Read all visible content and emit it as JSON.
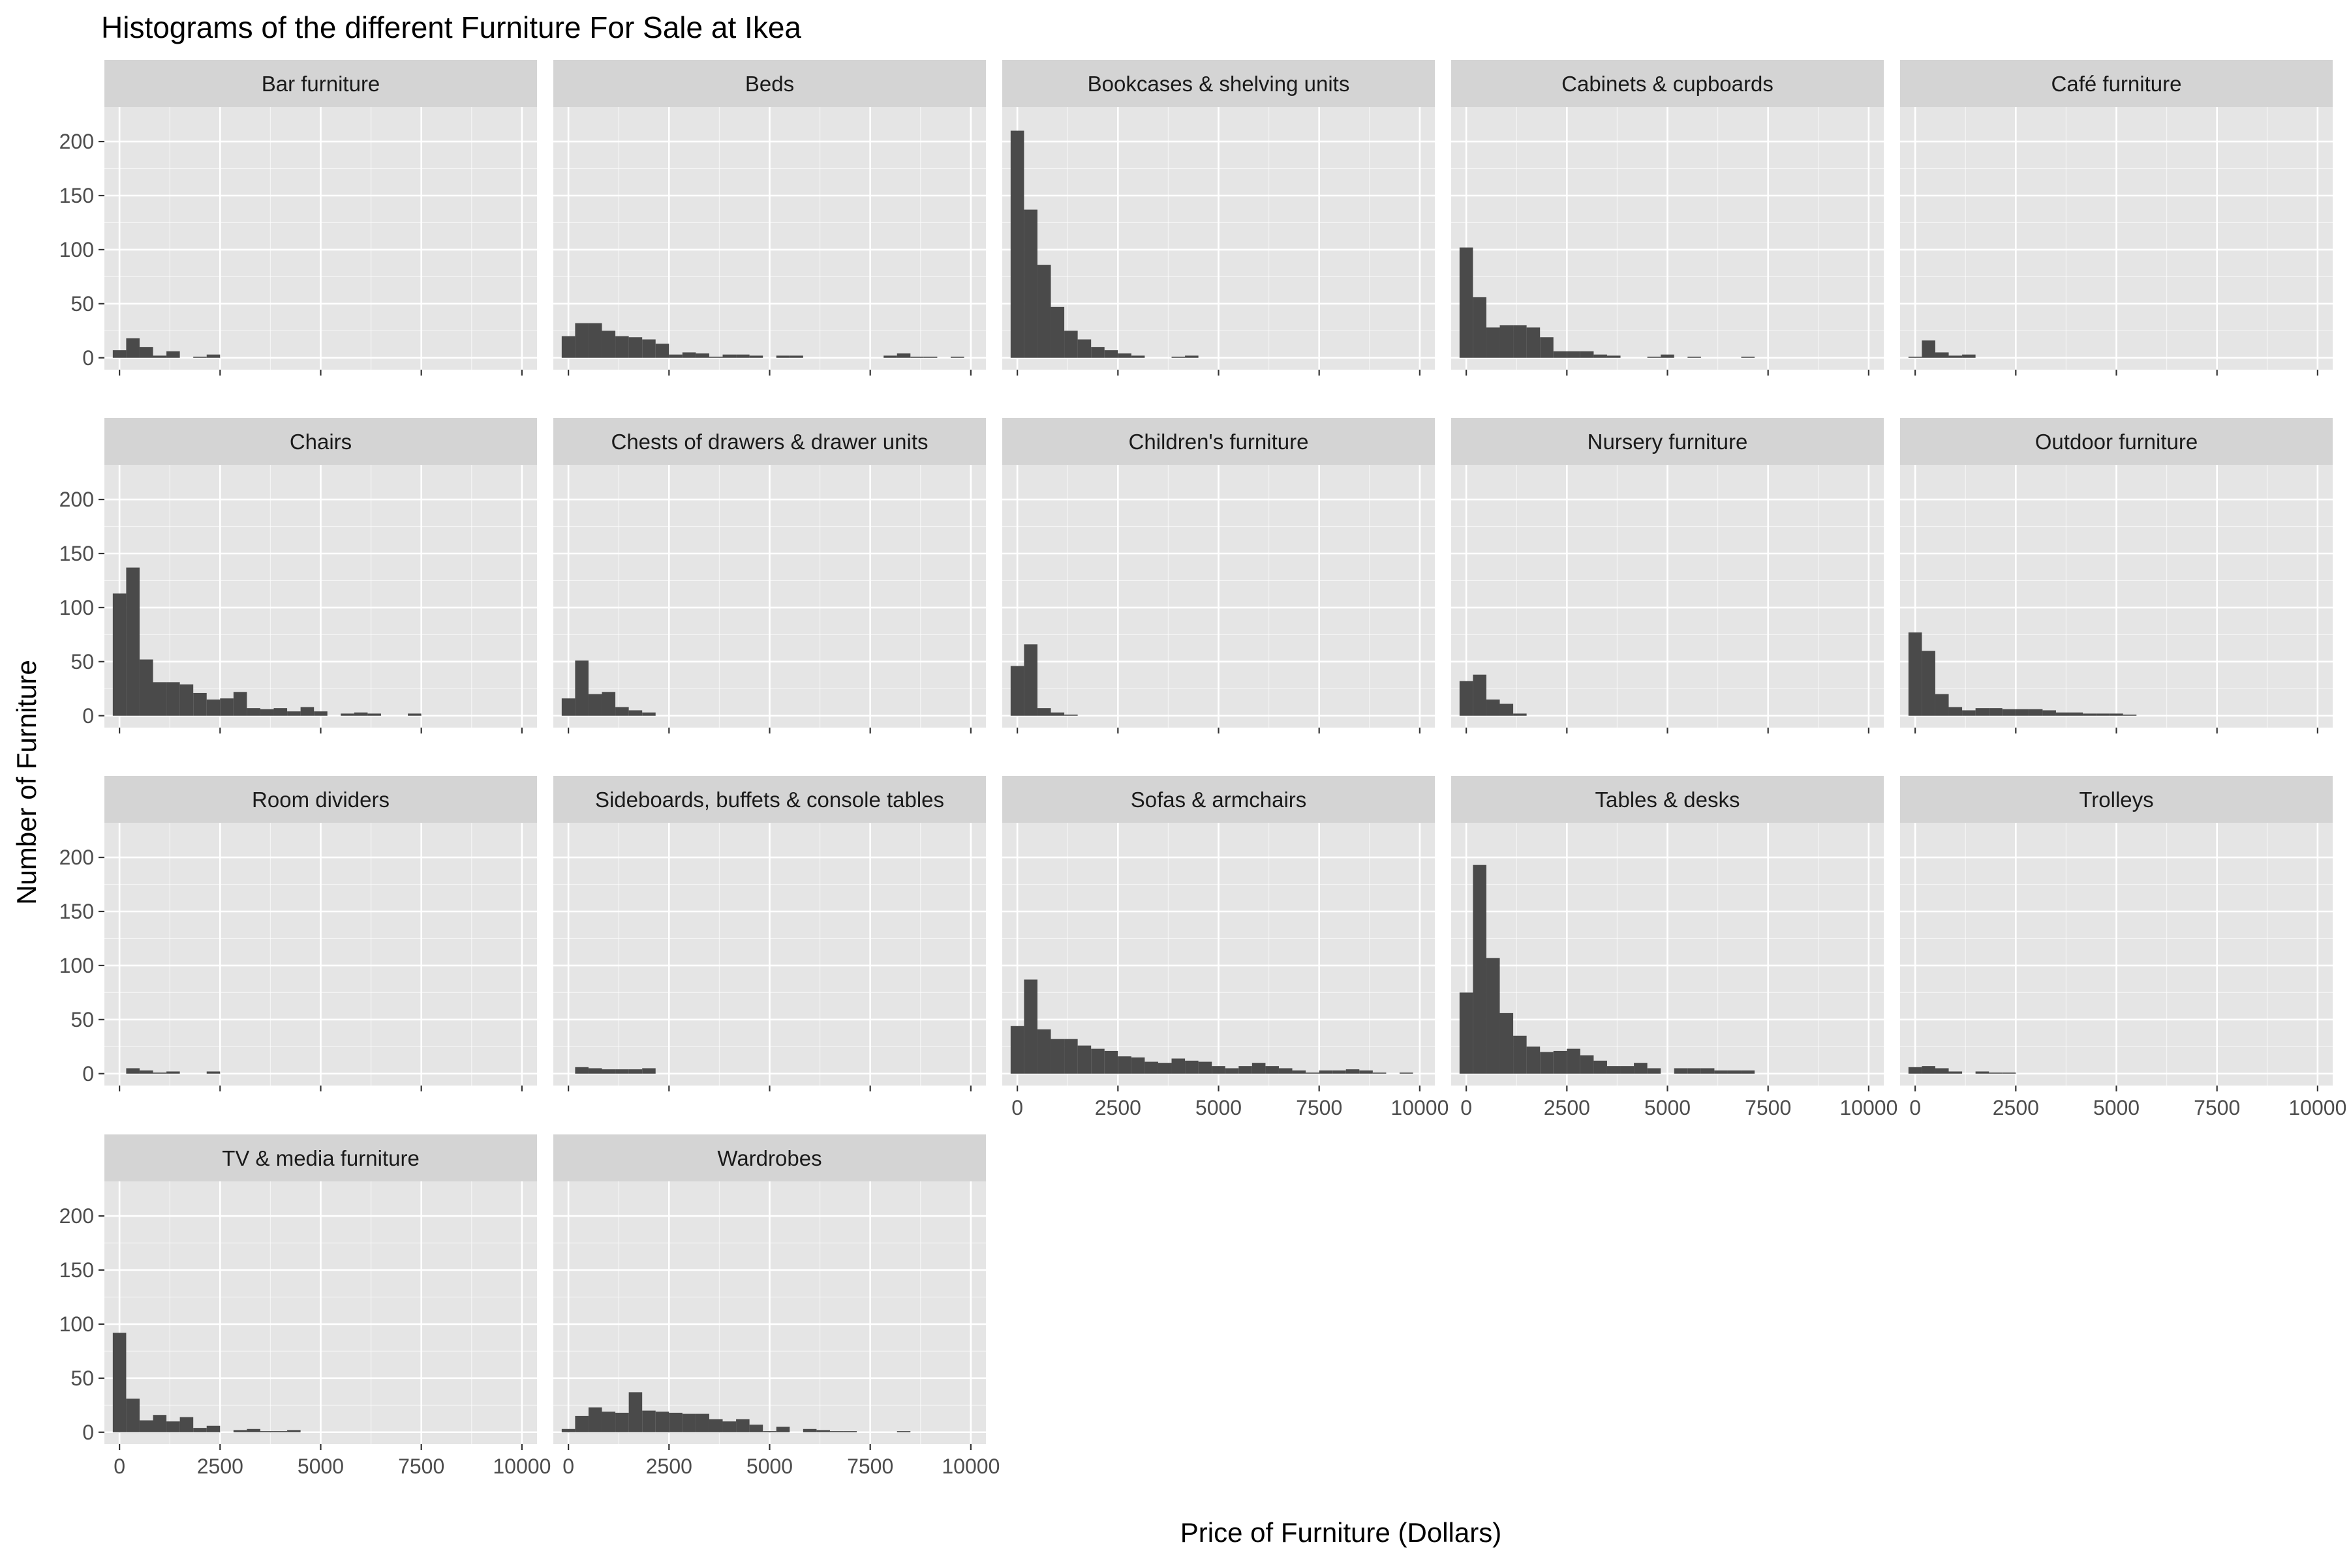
{
  "chart_data": {
    "type": "bar",
    "title": "Histograms of the different Furniture For Sale at Ikea",
    "xlabel": "Price of Furniture (Dollars)",
    "ylabel": "Number of Furniture",
    "xlim": [
      -375,
      10375
    ],
    "ylim": [
      -11,
      232
    ],
    "x_ticks": [
      0,
      2500,
      5000,
      7500,
      10000
    ],
    "y_ticks": [
      0,
      50,
      100,
      150,
      200
    ],
    "bin_width": 333.3,
    "bin_start": -166.7,
    "grid": true,
    "facet_layout": "5 columns x 4 rows",
    "colors": {
      "bar_fill": "#4a4a4a",
      "panel_background": "#e5e5e5",
      "grid_major": "#ffffff",
      "strip_background": "#d4d4d4",
      "axis_text": "#4d4d4d",
      "title_text": "#000000"
    },
    "panels": [
      {
        "name": "Bar furniture",
        "counts": [
          7,
          18,
          10,
          2,
          6,
          0,
          1,
          3
        ]
      },
      {
        "name": "Beds",
        "counts": [
          20,
          32,
          32,
          25,
          20,
          19,
          17,
          13,
          3,
          5,
          4,
          1,
          3,
          3,
          2,
          0,
          2,
          2,
          0,
          0,
          0,
          0,
          0,
          0,
          2,
          4,
          1,
          1,
          0,
          1
        ]
      },
      {
        "name": "Bookcases & shelving units",
        "counts": [
          210,
          137,
          86,
          47,
          25,
          17,
          10,
          7,
          4,
          2,
          0,
          0,
          1,
          2
        ]
      },
      {
        "name": "Cabinets & cupboards",
        "counts": [
          102,
          56,
          28,
          30,
          30,
          28,
          19,
          6,
          6,
          6,
          3,
          2,
          0,
          0,
          1,
          3,
          0,
          1,
          0,
          0,
          0,
          1
        ]
      },
      {
        "name": "Café furniture",
        "counts": [
          1,
          16,
          5,
          2,
          3
        ]
      },
      {
        "name": "Chairs",
        "counts": [
          113,
          137,
          52,
          31,
          31,
          29,
          21,
          15,
          16,
          22,
          7,
          6,
          7,
          4,
          8,
          4,
          0,
          2,
          3,
          2,
          0,
          0,
          2
        ]
      },
      {
        "name": "Chests of drawers & drawer units",
        "counts": [
          16,
          51,
          20,
          22,
          8,
          5,
          3
        ]
      },
      {
        "name": "Children's furniture",
        "counts": [
          46,
          66,
          7,
          3,
          1
        ]
      },
      {
        "name": "Nursery furniture",
        "counts": [
          32,
          38,
          15,
          11,
          2
        ]
      },
      {
        "name": "Outdoor furniture",
        "counts": [
          77,
          60,
          20,
          8,
          5,
          7,
          7,
          6,
          6,
          6,
          5,
          3,
          3,
          2,
          2,
          2,
          1
        ]
      },
      {
        "name": "Room dividers",
        "counts": [
          0,
          5,
          3,
          1,
          2,
          0,
          0,
          2
        ]
      },
      {
        "name": "Sideboards, buffets & console tables",
        "counts": [
          0,
          6,
          5,
          4,
          4,
          4,
          5
        ]
      },
      {
        "name": "Sofas & armchairs",
        "counts": [
          44,
          87,
          41,
          32,
          32,
          26,
          23,
          21,
          16,
          15,
          11,
          10,
          14,
          12,
          11,
          7,
          5,
          7,
          10,
          7,
          5,
          3,
          1,
          3,
          3,
          4,
          3,
          1,
          0,
          1
        ]
      },
      {
        "name": "Tables & desks",
        "counts": [
          75,
          193,
          107,
          56,
          35,
          25,
          20,
          21,
          23,
          17,
          12,
          7,
          7,
          10,
          5,
          0,
          5,
          5,
          5,
          3,
          3,
          3
        ]
      },
      {
        "name": "Trolleys",
        "counts": [
          6,
          7,
          5,
          2,
          0,
          2,
          1,
          1
        ]
      },
      {
        "name": "TV & media furniture",
        "counts": [
          92,
          31,
          11,
          16,
          10,
          14,
          4,
          6,
          0,
          2,
          3,
          1,
          1,
          2
        ]
      },
      {
        "name": "Wardrobes",
        "counts": [
          3,
          15,
          23,
          19,
          18,
          37,
          20,
          19,
          18,
          17,
          17,
          12,
          10,
          12,
          7,
          1,
          5,
          0,
          3,
          2,
          1,
          1,
          0,
          0,
          0,
          1
        ]
      }
    ]
  }
}
